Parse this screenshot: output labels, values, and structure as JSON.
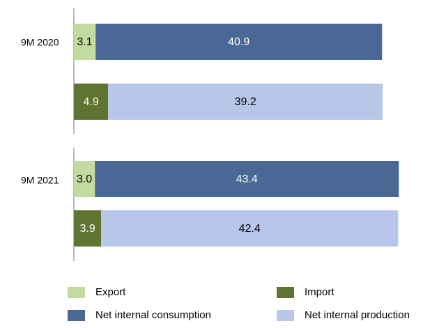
{
  "chart_data": {
    "type": "bar",
    "orientation": "horizontal",
    "stacked": true,
    "groups": [
      {
        "label": "9M 2020",
        "bars": [
          {
            "segments": [
              {
                "series": "Export",
                "value": 3.1,
                "label": "3.1"
              },
              {
                "series": "Net internal consumption",
                "value": 40.9,
                "label": "40.9"
              }
            ]
          },
          {
            "segments": [
              {
                "series": "Import",
                "value": 4.9,
                "label": "4.9"
              },
              {
                "series": "Net internal production",
                "value": 39.2,
                "label": "39.2"
              }
            ]
          }
        ]
      },
      {
        "label": "9M 2021",
        "bars": [
          {
            "segments": [
              {
                "series": "Export",
                "value": 3.0,
                "label": "3.0"
              },
              {
                "series": "Net internal consumption",
                "value": 43.4,
                "label": "43.4"
              }
            ]
          },
          {
            "segments": [
              {
                "series": "Import",
                "value": 3.9,
                "label": "3.9"
              },
              {
                "series": "Net internal production",
                "value": 42.4,
                "label": "42.4"
              }
            ]
          }
        ]
      }
    ],
    "series": [
      {
        "name": "Export",
        "color": "#c4dba0",
        "label_color": "#000000"
      },
      {
        "name": "Import",
        "color": "#5f7430",
        "label_color": "#ffffff"
      },
      {
        "name": "Net internal consumption",
        "color": "#4a6896",
        "label_color": "#ffffff"
      },
      {
        "name": "Net internal production",
        "color": "#b8c6ea",
        "label_color": "#000000"
      }
    ],
    "legend_position": "bottom",
    "grid": false
  }
}
